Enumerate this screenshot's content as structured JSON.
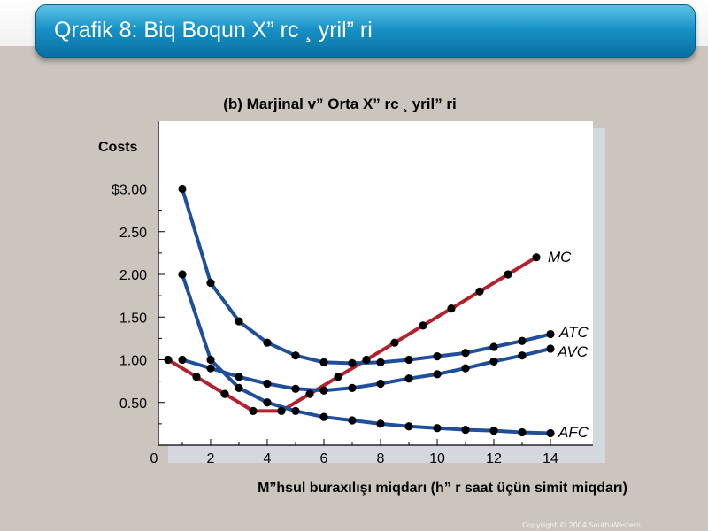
{
  "slide": {
    "title": "Qrafik 8: Biq Boqun X” rc ¸ yril” ri",
    "copyright": "Copyright © 2004  South-Western"
  },
  "colors": {
    "mc": "#b5202e",
    "cost_curves": "#1e4e9c",
    "point": "#000000",
    "plot_background": "#ffffff"
  },
  "chart_data": {
    "type": "line",
    "subtitle": "(b) Marjinal v”  Orta X” rc ¸  yril” ri",
    "ylabel": "Costs",
    "xlabel": "M”hsul buraxılışı miqdarı (h” r saat üçün simit miqdarı)",
    "xlim": [
      0,
      15
    ],
    "ylim": [
      0,
      3.25
    ],
    "x_ticks": [
      0,
      2,
      4,
      6,
      8,
      10,
      12,
      14
    ],
    "x_tick_labels": [
      "0",
      "2",
      "4",
      "6",
      "8",
      "10",
      "12",
      "14"
    ],
    "y_ticks": [
      0.5,
      1.0,
      1.5,
      2.0,
      2.5,
      3.0
    ],
    "y_tick_labels": [
      "0.50",
      "1.00",
      "1.50",
      "2.00",
      "2.50",
      "$3.00"
    ],
    "grid": false,
    "series": [
      {
        "name": "MC",
        "color_key": "mc",
        "points": [
          [
            0.5,
            1.0
          ],
          [
            1.5,
            0.8
          ],
          [
            2.5,
            0.6
          ],
          [
            3.5,
            0.4
          ],
          [
            4.5,
            0.4
          ],
          [
            5.5,
            0.6
          ],
          [
            6.5,
            0.8
          ],
          [
            7.5,
            1.0
          ],
          [
            8.5,
            1.2
          ],
          [
            9.5,
            1.4
          ],
          [
            10.5,
            1.6
          ],
          [
            11.5,
            1.8
          ],
          [
            12.5,
            2.0
          ],
          [
            13.5,
            2.2
          ]
        ]
      },
      {
        "name": "ATC",
        "color_key": "cost_curves",
        "points": [
          [
            1,
            3.0
          ],
          [
            2,
            1.9
          ],
          [
            3,
            1.45
          ],
          [
            4,
            1.2
          ],
          [
            5,
            1.05
          ],
          [
            6,
            0.97
          ],
          [
            7,
            0.96
          ],
          [
            8,
            0.97
          ],
          [
            9,
            1.0
          ],
          [
            10,
            1.04
          ],
          [
            11,
            1.08
          ],
          [
            12,
            1.15
          ],
          [
            13,
            1.22
          ],
          [
            14,
            1.3
          ]
        ]
      },
      {
        "name": "AVC",
        "color_key": "cost_curves",
        "points": [
          [
            1,
            1.0
          ],
          [
            2,
            0.9
          ],
          [
            3,
            0.8
          ],
          [
            4,
            0.72
          ],
          [
            5,
            0.66
          ],
          [
            6,
            0.64
          ],
          [
            7,
            0.67
          ],
          [
            8,
            0.72
          ],
          [
            9,
            0.78
          ],
          [
            10,
            0.83
          ],
          [
            11,
            0.9
          ],
          [
            12,
            0.98
          ],
          [
            13,
            1.05
          ],
          [
            14,
            1.13
          ]
        ]
      },
      {
        "name": "AFC",
        "color_key": "cost_curves",
        "points": [
          [
            1,
            2.0
          ],
          [
            2,
            1.0
          ],
          [
            3,
            0.67
          ],
          [
            4,
            0.5
          ],
          [
            5,
            0.4
          ],
          [
            6,
            0.33
          ],
          [
            7,
            0.29
          ],
          [
            8,
            0.25
          ],
          [
            9,
            0.22
          ],
          [
            10,
            0.2
          ],
          [
            11,
            0.18
          ],
          [
            12,
            0.17
          ],
          [
            13,
            0.15
          ],
          [
            14,
            0.14
          ]
        ]
      }
    ]
  }
}
